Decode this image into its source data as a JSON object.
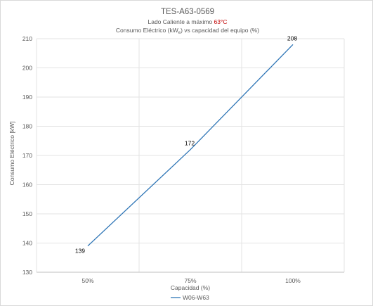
{
  "chart_data": {
    "type": "line",
    "title": "TES-A63-0569",
    "subtitle1_prefix": "Lado Caliente a máximo ",
    "subtitle1_highlight": "63°C",
    "subtitle2_a": "Consumo Eléctrico (kW",
    "subtitle2_sub": "e",
    "subtitle2_b": ") vs capacidad del equipo (%)",
    "xlabel": "Capacidad (%)",
    "ylabel": "Consumo Eléctrico  [kW]",
    "categories": [
      "50%",
      "75%",
      "100%"
    ],
    "ylim": [
      130,
      210
    ],
    "yticks": [
      130,
      140,
      150,
      160,
      170,
      180,
      190,
      200,
      210
    ],
    "series": [
      {
        "name": "W06-W63",
        "values": [
          139,
          172,
          208
        ],
        "color": "#2e75b6"
      }
    ],
    "data_labels": [
      "139",
      "172",
      "208"
    ],
    "grid": true,
    "legend_position": "bottom"
  }
}
